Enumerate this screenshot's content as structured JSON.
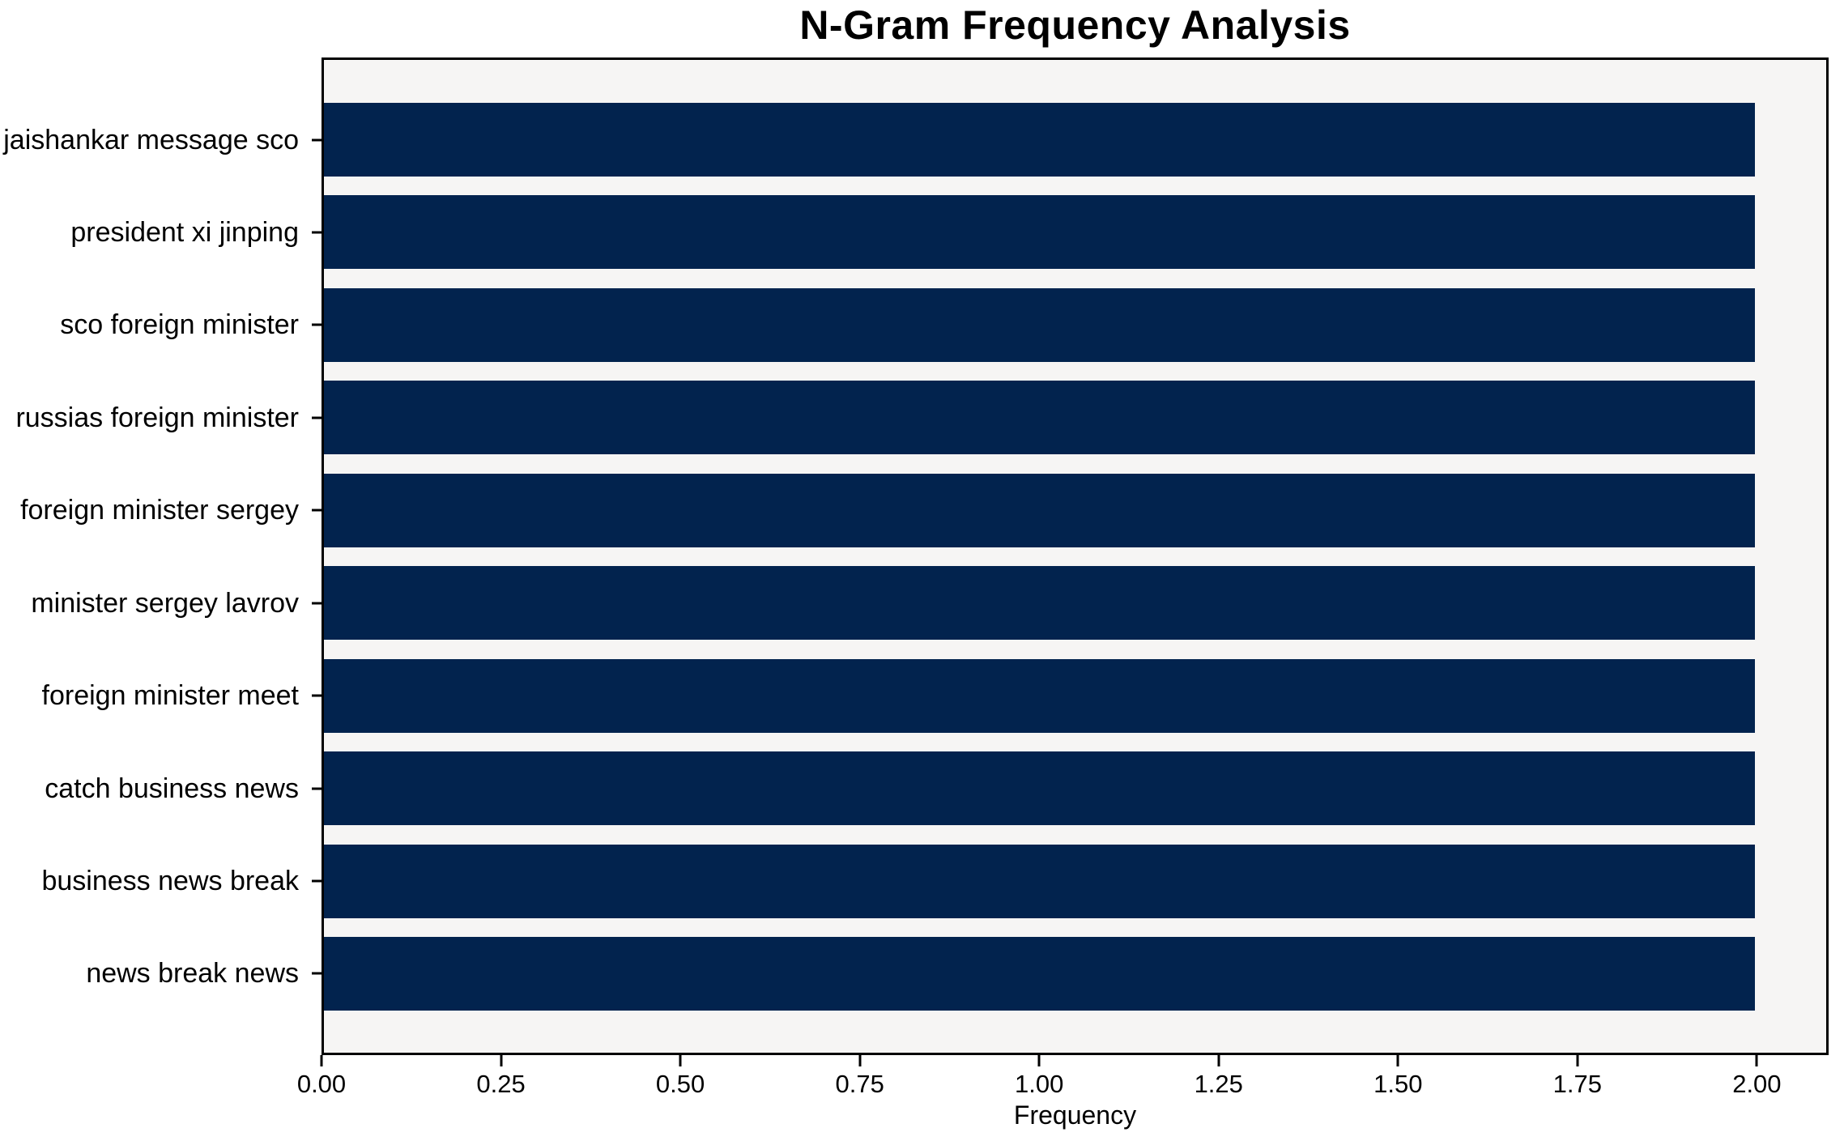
{
  "chart_data": {
    "type": "bar",
    "orientation": "horizontal",
    "title": "N-Gram Frequency Analysis",
    "xlabel": "Frequency",
    "ylabel": "",
    "categories": [
      "jaishankar message sco",
      "president xi jinping",
      "sco foreign minister",
      "russias foreign minister",
      "foreign minister sergey",
      "minister sergey lavrov",
      "foreign minister meet",
      "catch business news",
      "business news break",
      "news break news"
    ],
    "values": [
      2.0,
      2.0,
      2.0,
      2.0,
      2.0,
      2.0,
      2.0,
      2.0,
      2.0,
      2.0
    ],
    "xlim": [
      0,
      2.1
    ],
    "xtick_values": [
      0,
      0.25,
      0.5,
      0.75,
      1.0,
      1.25,
      1.5,
      1.75,
      2.0
    ],
    "xtick_labels": [
      "0.00",
      "0.25",
      "0.50",
      "0.75",
      "1.00",
      "1.25",
      "1.50",
      "1.75",
      "2.00"
    ],
    "grid": false,
    "legend": "none",
    "colors": {
      "bar": "#02234e",
      "plot_background": "#f6f5f4",
      "figure_background": "#ffffff",
      "axis": "#000000",
      "text": "#000000"
    }
  }
}
